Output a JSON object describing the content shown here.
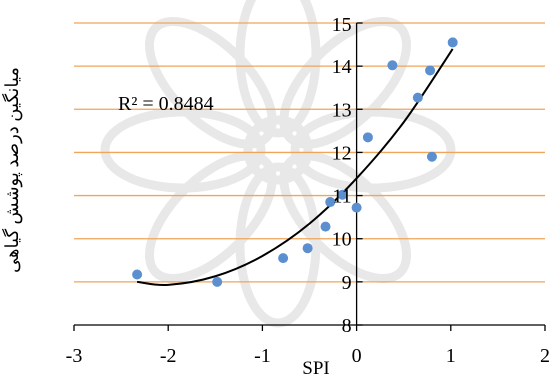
{
  "chart_data": {
    "type": "scatter",
    "title": "",
    "xlabel": "SPI",
    "ylabel": "میانگین درصد پوشش گیاهی",
    "xlim": [
      -3,
      2
    ],
    "ylim": [
      8,
      15
    ],
    "x_ticks": [
      -3,
      -2,
      -1,
      0,
      1,
      2
    ],
    "y_ticks": [
      8,
      9,
      10,
      11,
      12,
      13,
      14,
      15
    ],
    "x_tick_labels": [
      "-3",
      "-2",
      "-1",
      "0",
      "1",
      "2"
    ],
    "y_tick_labels": [
      "8",
      "9",
      "10",
      "11",
      "12",
      "13",
      "14",
      "15"
    ],
    "grid": "horizontal",
    "legend": "none",
    "annotation": "R² = 0.8484",
    "colors": {
      "points": "#5b8fd0",
      "gridlines": "#f0a55a",
      "trendline": "#000000",
      "axes": "#000000"
    },
    "series": [
      {
        "values": [
          [
            -2.33,
            9.17
          ],
          [
            -1.48,
            9.0
          ],
          [
            -0.78,
            9.55
          ],
          [
            -0.52,
            9.78
          ],
          [
            -0.33,
            10.28
          ],
          [
            -0.28,
            10.85
          ],
          [
            -0.15,
            11.02
          ],
          [
            0.0,
            10.72
          ],
          [
            0.12,
            12.35
          ],
          [
            0.38,
            14.02
          ],
          [
            0.65,
            13.27
          ],
          [
            0.78,
            13.9
          ],
          [
            0.8,
            11.9
          ],
          [
            1.02,
            14.55
          ]
        ]
      }
    ],
    "trendline": {
      "type": "polynomial",
      "x_range": [
        -2.33,
        1.02
      ],
      "points": [
        [
          -2.33,
          9.0
        ],
        [
          -2.0,
          8.93
        ],
        [
          -1.5,
          9.13
        ],
        [
          -1.0,
          9.6
        ],
        [
          -0.5,
          10.35
        ],
        [
          0.0,
          11.4
        ],
        [
          0.5,
          12.7
        ],
        [
          1.02,
          14.4
        ]
      ]
    }
  }
}
